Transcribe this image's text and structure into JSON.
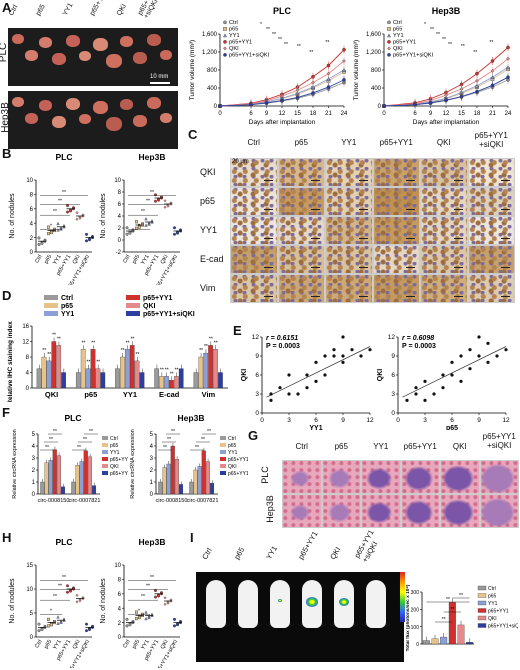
{
  "A": {
    "label": "A",
    "photo_left_labels": [
      "Ctrl",
      "p65",
      "YY1",
      "p65+YY1",
      "QKI",
      "p65+YY1\n+siQKI"
    ],
    "row_labels": [
      "PLC",
      "Hep3B"
    ],
    "scale_text": "10 mm",
    "chart_plc": {
      "title": "PLC",
      "ylabel": "Tumor volume (mm³)",
      "xlabel": "Days after implantation"
    },
    "chart_hep": {
      "title": "Hep3B",
      "ylabel": "Tumor volume (mm³)",
      "xlabel": "Days after implantation"
    },
    "legend": [
      "Ctrl",
      "p65",
      "YY1",
      "p65+YY1",
      "QKI",
      "p65+YY1+siQKI"
    ]
  },
  "B": {
    "label": "B",
    "title_plc": "PLC",
    "title_hep": "Hep3B",
    "ylabel": "No. of nodules"
  },
  "C": {
    "label": "C",
    "cols": [
      "Ctrl",
      "p65",
      "YY1",
      "p65+YY1",
      "QKI",
      "p65+YY1\n+siQKI"
    ],
    "rows": [
      "QKI",
      "p65",
      "YY1",
      "E-cad",
      "Vim"
    ],
    "scale_text": "20 μm"
  },
  "D": {
    "label": "D",
    "ylabel": "Relative IHC staining index",
    "legend": [
      "Ctrl",
      "p65",
      "YY1",
      "p65+YY1",
      "QKI",
      "p65+YY1+siQKI"
    ]
  },
  "E": {
    "label": "E",
    "left": {
      "r": "r = 0.6151",
      "p": "P = 0.0003",
      "xlabel": "YY1",
      "ylabel": "QKI"
    },
    "right": {
      "r": "r = 0.6098",
      "p": "P = 0.0003",
      "xlabel": "p65",
      "ylabel": "QKI"
    }
  },
  "F": {
    "label": "F",
    "title_plc": "PLC",
    "title_hep": "Hep3B",
    "ylabel_plc": "Relative circRNA expression",
    "ylabel_hep": "Relative circRNA expression",
    "legend": [
      "Ctrl",
      "p65",
      "YY1",
      "p65+YY1",
      "QKI",
      "p65+YY1+siQKI"
    ]
  },
  "G": {
    "label": "G",
    "cols": [
      "Ctrl",
      "p65",
      "YY1",
      "p65+YY1",
      "QKI",
      "p65+YY1\n+siQKI"
    ],
    "rows": [
      "PLC",
      "Hep3B"
    ]
  },
  "H": {
    "label": "H",
    "title_plc": "PLC",
    "title_hep": "Hep3B",
    "ylabel": "No. of nodules"
  },
  "I": {
    "label": "I",
    "mice": [
      "Ctrl",
      "p65",
      "YY1",
      "p65+YY1",
      "QKI",
      "p65+YY1\n+siQKI"
    ],
    "ylabel": "Total flux (photons/sec x 10⁸)",
    "legend": [
      "Ctrl",
      "p65",
      "YY1",
      "p65+YY1",
      "QKI",
      "p65+YY1+siQKI"
    ]
  },
  "colors": {
    "ctrl": "#9a9a9a",
    "p65": "#e7c38a",
    "yy1": "#8da0d6",
    "p65yy1": "#d0312d",
    "qki": "#e58a8a",
    "siqki": "#2c3fa0"
  },
  "chart_data": [
    {
      "type": "line",
      "title": "PLC",
      "x": [
        0,
        6,
        9,
        12,
        15,
        18,
        21,
        24
      ],
      "series": [
        {
          "name": "Ctrl",
          "values": [
            0,
            30,
            60,
            110,
            170,
            260,
            380,
            520
          ]
        },
        {
          "name": "p65",
          "values": [
            0,
            40,
            90,
            160,
            260,
            400,
            560,
            760
          ]
        },
        {
          "name": "YY1",
          "values": [
            0,
            40,
            90,
            170,
            280,
            420,
            600,
            800
          ]
        },
        {
          "name": "p65+YY1",
          "values": [
            0,
            60,
            140,
            260,
            420,
            650,
            900,
            1250
          ]
        },
        {
          "name": "QKI",
          "values": [
            0,
            50,
            110,
            220,
            350,
            520,
            720,
            1000
          ]
        },
        {
          "name": "p65+YY1+siQKI",
          "values": [
            0,
            30,
            70,
            120,
            190,
            290,
            420,
            580
          ]
        }
      ],
      "xlabel": "Days after implantation",
      "ylabel": "Tumor volume (mm³)",
      "ylim": [
        0,
        1600
      ]
    },
    {
      "type": "line",
      "title": "Hep3B",
      "x": [
        0,
        6,
        9,
        12,
        15,
        18,
        21,
        24
      ],
      "series": [
        {
          "name": "Ctrl",
          "values": [
            0,
            30,
            60,
            120,
            200,
            300,
            420,
            580
          ]
        },
        {
          "name": "p65",
          "values": [
            0,
            40,
            80,
            160,
            280,
            420,
            600,
            820
          ]
        },
        {
          "name": "YY1",
          "values": [
            0,
            40,
            90,
            170,
            300,
            450,
            640,
            860
          ]
        },
        {
          "name": "p65+YY1",
          "values": [
            0,
            70,
            160,
            300,
            480,
            720,
            1000,
            1300
          ]
        },
        {
          "name": "QKI",
          "values": [
            0,
            50,
            120,
            240,
            380,
            560,
            780,
            1050
          ]
        },
        {
          "name": "p65+YY1+siQKI",
          "values": [
            0,
            30,
            70,
            130,
            210,
            320,
            460,
            640
          ]
        }
      ],
      "xlabel": "Days after implantation",
      "ylabel": "Tumor volume (mm³)",
      "ylim": [
        0,
        1600
      ]
    },
    {
      "type": "scatter",
      "title": "PLC",
      "categories": [
        "Ctrl",
        "p65",
        "YY1",
        "p65+YY1",
        "QKI",
        "p65+YY1+siQKI"
      ],
      "values": [
        1.5,
        3,
        3.5,
        6,
        5,
        2
      ],
      "ylabel": "No. of nodules",
      "ylim": [
        0,
        10
      ]
    },
    {
      "type": "scatter",
      "title": "Hep3B",
      "categories": [
        "Ctrl",
        "p65",
        "YY1",
        "p65+YY1",
        "QKI",
        "p65+YY1+siQKI"
      ],
      "values": [
        1.5,
        2.5,
        3,
        7,
        6,
        1.5
      ],
      "ylabel": "No. of nodules",
      "ylim": [
        -2,
        10
      ]
    },
    {
      "type": "bar",
      "categories": [
        "QKI",
        "p65",
        "YY1",
        "E-cad",
        "Vim"
      ],
      "series": [
        {
          "name": "Ctrl",
          "values": [
            5,
            4,
            5,
            5,
            4
          ]
        },
        {
          "name": "p65",
          "values": [
            8,
            10,
            8,
            3,
            8
          ]
        },
        {
          "name": "YY1",
          "values": [
            7,
            5,
            10,
            3,
            9
          ]
        },
        {
          "name": "p65+YY1",
          "values": [
            12,
            10,
            11,
            2,
            11
          ]
        },
        {
          "name": "QKI",
          "values": [
            11,
            5,
            7,
            3,
            10
          ]
        },
        {
          "name": "p65+YY1+siQKI",
          "values": [
            4,
            4,
            4,
            5,
            4
          ]
        }
      ],
      "ylabel": "Relative IHC staining index",
      "ylim": [
        0,
        16
      ]
    },
    {
      "type": "scatter",
      "x": [
        1,
        1,
        2,
        3,
        3,
        4,
        5,
        5,
        6,
        6,
        7,
        7,
        8,
        8,
        9,
        9,
        9,
        10,
        11,
        12
      ],
      "y": [
        2,
        3,
        4,
        3,
        6,
        3,
        4,
        6,
        5,
        8,
        9,
        6,
        9,
        10,
        8,
        12,
        9,
        10,
        9,
        10
      ],
      "xlabel": "YY1",
      "ylabel": "QKI",
      "xlim": [
        0,
        12
      ],
      "ylim": [
        0,
        12
      ]
    },
    {
      "type": "scatter",
      "x": [
        1,
        2,
        2,
        3,
        3,
        4,
        5,
        5,
        6,
        6,
        7,
        7,
        8,
        8,
        9,
        9,
        10,
        10,
        11,
        12
      ],
      "y": [
        2,
        3,
        4,
        2,
        5,
        3,
        4,
        6,
        6,
        8,
        5,
        9,
        7,
        10,
        9,
        12,
        8,
        11,
        9,
        10
      ],
      "xlabel": "p65",
      "ylabel": "QKI",
      "xlim": [
        0,
        12
      ],
      "ylim": [
        0,
        12
      ]
    },
    {
      "type": "bar",
      "title": "PLC",
      "categories": [
        "circ-0008150",
        "circ-0007821"
      ],
      "series": [
        {
          "name": "Ctrl",
          "values": [
            1,
            1
          ]
        },
        {
          "name": "p65",
          "values": [
            2.6,
            2.4
          ]
        },
        {
          "name": "YY1",
          "values": [
            2.8,
            2.7
          ]
        },
        {
          "name": "p65+YY1",
          "values": [
            3.7,
            3.6
          ]
        },
        {
          "name": "QKI",
          "values": [
            3.2,
            3.1
          ]
        },
        {
          "name": "p65+YY1+siQKI",
          "values": [
            0.6,
            0.7
          ]
        }
      ],
      "ylabel": "Relative circRNA expression",
      "ylim": [
        0,
        5
      ]
    },
    {
      "type": "bar",
      "title": "Hep3B",
      "categories": [
        "circ-0008150",
        "circ-0007821"
      ],
      "series": [
        {
          "name": "Ctrl",
          "values": [
            1,
            1
          ]
        },
        {
          "name": "p65",
          "values": [
            2.2,
            2.0
          ]
        },
        {
          "name": "YY1",
          "values": [
            2.5,
            2.3
          ]
        },
        {
          "name": "p65+YY1",
          "values": [
            4.0,
            3.6
          ]
        },
        {
          "name": "QKI",
          "values": [
            2.9,
            2.7
          ]
        },
        {
          "name": "p65+YY1+siQKI",
          "values": [
            0.8,
            0.9
          ]
        }
      ],
      "ylabel": "Relative circRNA expression",
      "ylim": [
        0,
        5
      ]
    },
    {
      "type": "scatter",
      "title": "PLC",
      "categories": [
        "Ctrl",
        "p65",
        "YY1",
        "p65+YY1",
        "QKI",
        "p65+YY1+siQKI"
      ],
      "values": [
        2,
        3,
        3.5,
        10,
        8,
        2
      ],
      "ylabel": "No. of nodules",
      "ylim": [
        0,
        15
      ]
    },
    {
      "type": "scatter",
      "title": "Hep3B",
      "categories": [
        "Ctrl",
        "p65",
        "YY1",
        "p65+YY1",
        "QKI",
        "p65+YY1+siQKI"
      ],
      "values": [
        2,
        3,
        3,
        6,
        5,
        2
      ],
      "ylabel": "No. of nodules",
      "ylim": [
        0,
        10
      ]
    },
    {
      "type": "bar",
      "categories": [
        "Ctrl",
        "p65",
        "YY1",
        "p65+YY1",
        "QKI",
        "p65+YY1+siQKI"
      ],
      "values": [
        20,
        30,
        40,
        240,
        110,
        10
      ],
      "ylabel": "Total flux (photons/sec x 10⁸)",
      "ylim": [
        0,
        300
      ]
    }
  ]
}
